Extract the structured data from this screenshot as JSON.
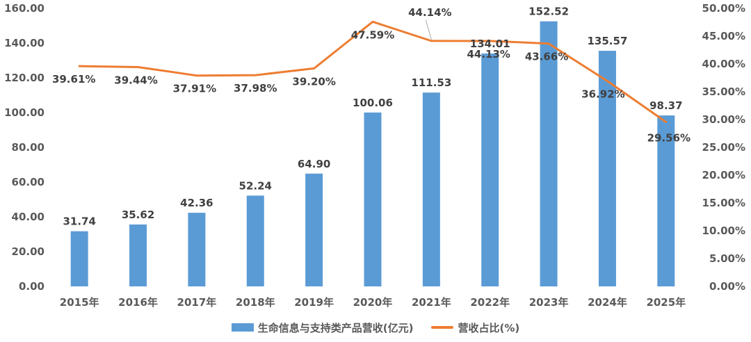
{
  "chart_data": {
    "type": "bar+line",
    "categories": [
      "2015年",
      "2016年",
      "2017年",
      "2018年",
      "2019年",
      "2020年",
      "2021年",
      "2022年",
      "2023年",
      "2024年",
      "2025年"
    ],
    "series": [
      {
        "name": "生命信息与支持类产品营收(亿元)",
        "type": "bar",
        "axis": "left",
        "color": "#5B9BD5",
        "values": [
          31.74,
          35.62,
          42.36,
          52.24,
          64.9,
          100.06,
          111.53,
          134.01,
          152.52,
          135.57,
          98.37
        ],
        "labels": [
          "31.74",
          "35.62",
          "42.36",
          "52.24",
          "64.90",
          "100.06",
          "111.53",
          "134.01",
          "152.52",
          "135.57",
          "98.37"
        ]
      },
      {
        "name": "营收占比(%)",
        "type": "line",
        "axis": "right",
        "color": "#ED7D31",
        "values": [
          39.61,
          39.44,
          37.91,
          37.98,
          39.2,
          47.59,
          44.14,
          44.13,
          43.66,
          36.92,
          29.56
        ],
        "labels": [
          "39.61%",
          "39.44%",
          "37.91%",
          "37.98%",
          "39.20%",
          "47.59%",
          "44.14%",
          "44.13%",
          "43.66%",
          "36.92%",
          "29.56%"
        ]
      }
    ],
    "y_left": {
      "range": [
        0,
        160
      ],
      "ticks": [
        "0.00",
        "20.00",
        "40.00",
        "60.00",
        "80.00",
        "100.00",
        "120.00",
        "140.00",
        "160.00"
      ]
    },
    "y_right": {
      "range": [
        0,
        50
      ],
      "ticks": [
        "0.00%",
        "5.00%",
        "10.00%",
        "15.00%",
        "20.00%",
        "25.00%",
        "30.00%",
        "35.00%",
        "40.00%",
        "45.00%",
        "50.00%"
      ]
    },
    "grid": false,
    "legend": "bottom"
  }
}
